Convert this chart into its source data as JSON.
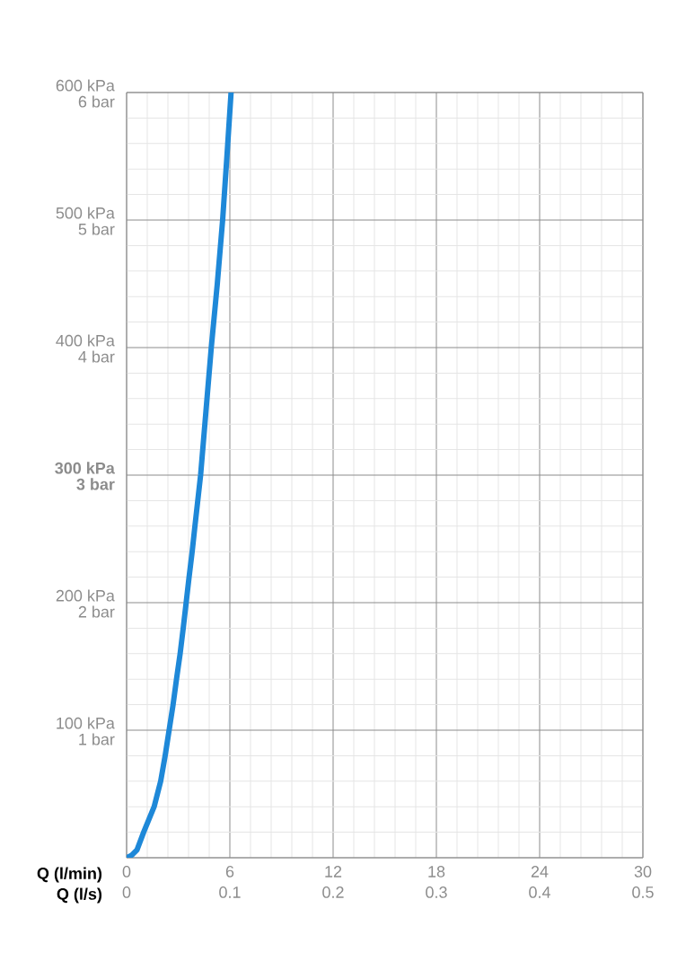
{
  "chart_data": {
    "type": "line",
    "xlabel": "Q (l/min)",
    "x2label": "Q (l/s)",
    "grid": true,
    "xlim": [
      0,
      30
    ],
    "xticks": [
      0,
      6,
      12,
      18,
      24,
      30
    ],
    "x2lim": [
      0,
      0.5
    ],
    "x2ticks": [
      0,
      0.1,
      0.2,
      0.3,
      0.4,
      0.5
    ],
    "ylim": [
      0,
      600
    ],
    "yticks": [
      {
        "value": 0,
        "label": null
      },
      {
        "value": 100,
        "label": "100 kPa"
      },
      {
        "value": 200,
        "label": "200 kPa"
      },
      {
        "value": 300,
        "label": "**300 kPa**"
      },
      {
        "value": 400,
        "label": "400 kPa"
      },
      {
        "value": 500,
        "label": "500 kPa"
      },
      {
        "value": 600,
        "label": "600 kPa"
      }
    ],
    "y2lim": [
      0,
      6
    ],
    "y2ticks": [
      {
        "value": 0,
        "label": null
      },
      {
        "value": 1,
        "label": "1 bar"
      },
      {
        "value": 2,
        "label": "2 bar"
      },
      {
        "value": 3,
        "label": "**3 bar**"
      },
      {
        "value": 4,
        "label": "4 bar"
      },
      {
        "value": 5,
        "label": "5 bar"
      },
      {
        "value": 6,
        "label": "6 bar"
      }
    ],
    "series": [
      {
        "color": "#1e88d8",
        "x": [
          0,
          0.3,
          0.6,
          0.99,
          1.6,
          1.98,
          2.24,
          2.47,
          2.7,
          2.9,
          3.11,
          3.29,
          3.46,
          3.63,
          3.81,
          3.97,
          4.3,
          4.61,
          4.92,
          5.27,
          5.58,
          5.83,
          6.07
        ],
        "values": [
          0,
          2,
          6,
          20,
          40,
          60,
          80,
          100,
          120,
          140,
          160,
          180,
          200,
          220,
          240,
          260,
          300,
          350,
          400,
          450,
          500,
          550,
          600
        ]
      }
    ]
  }
}
